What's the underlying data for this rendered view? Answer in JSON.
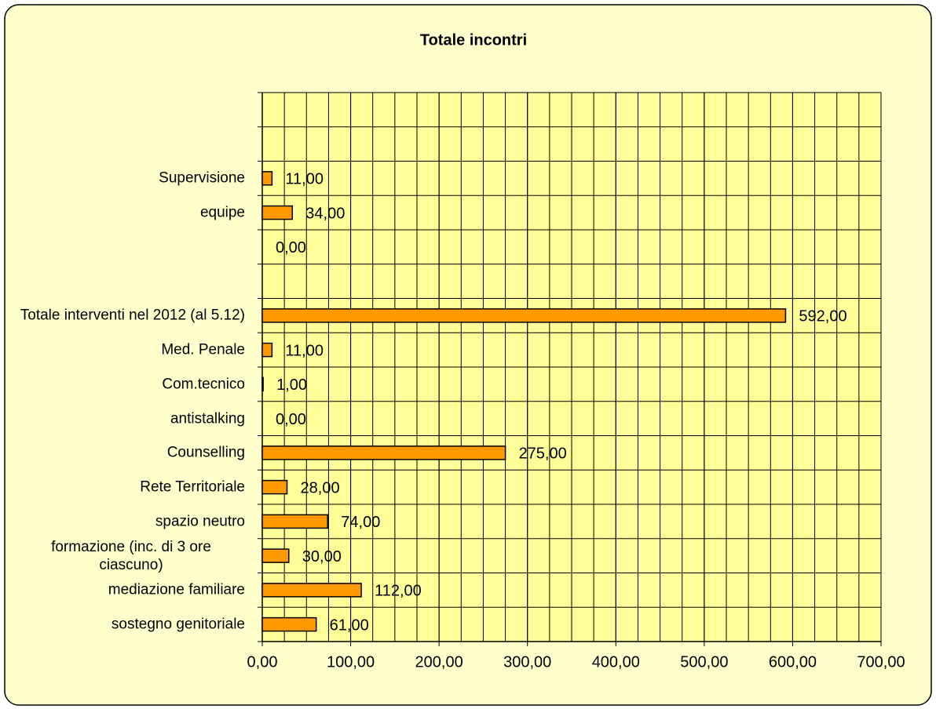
{
  "chart_data": {
    "type": "barh",
    "title": "Totale incontri",
    "categories": [
      "sostegno genitoriale",
      "mediazione familiare",
      "formazione (inc. di 3 ore ciascuno)",
      "spazio neutro",
      "Rete Territoriale ",
      "Counselling",
      "antistalking",
      "Com.tecnico",
      "Med. Penale",
      "Totale interventi nel 2012 (al 5.12)",
      null,
      null,
      "equipe",
      "Supervisione",
      null,
      null
    ],
    "values": [
      61,
      112,
      30,
      74,
      28,
      275,
      0,
      1,
      11,
      592,
      null,
      0,
      34,
      11,
      null,
      null
    ],
    "value_labels": [
      "61,00",
      "112,00",
      "30,00",
      "74,00",
      "28,00",
      "275,00",
      "0,00",
      "1,00",
      "11,00",
      "592,00",
      null,
      "0,00",
      "34,00",
      "11,00",
      null,
      null
    ],
    "color": "#ff9900",
    "xlim": [
      0,
      700
    ],
    "xticks": [
      {
        "value": 0,
        "label": "0,00"
      },
      {
        "value": 100,
        "label": "100,00"
      },
      {
        "value": 200,
        "label": "200,00"
      },
      {
        "value": 300,
        "label": "300,00"
      },
      {
        "value": 400,
        "label": "400,00"
      },
      {
        "value": 500,
        "label": "500,00"
      },
      {
        "value": 600,
        "label": "600,00"
      },
      {
        "value": 700,
        "label": "700,00"
      }
    ],
    "grid": true,
    "minor_grid_step": 25
  }
}
